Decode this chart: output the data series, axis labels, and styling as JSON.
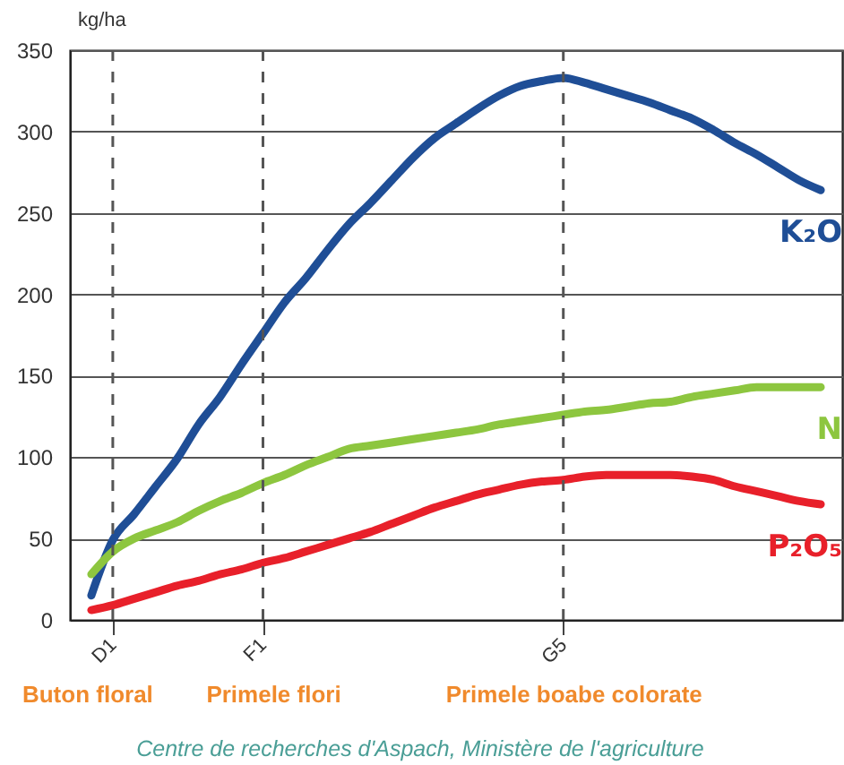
{
  "chart_data": {
    "type": "line",
    "ylabel": "kg/ha",
    "ylim": [
      0,
      350
    ],
    "categories": [
      null,
      "D1",
      null,
      null,
      null,
      null,
      null,
      null,
      "F1",
      null,
      null,
      null,
      null,
      null,
      null,
      null,
      null,
      null,
      null,
      null,
      null,
      null,
      "G5",
      null,
      null,
      null,
      null,
      null,
      null,
      null,
      null,
      null,
      null,
      null,
      null
    ],
    "yticks": [
      0,
      50,
      100,
      150,
      200,
      250,
      300,
      350
    ],
    "grid": "y",
    "ref_lines": [
      {
        "axis": "x",
        "value": "D1",
        "color": "#555555",
        "line_style": "dashed"
      },
      {
        "axis": "x",
        "value": "F1",
        "color": "#555555",
        "line_style": "dashed"
      },
      {
        "axis": "x",
        "value": "G5",
        "color": "#555555",
        "line_style": "dashed"
      }
    ],
    "series": [
      {
        "name": "K₂O",
        "color": "#1f4e96",
        "values": [
          15,
          49,
          65,
          82,
          99,
          120,
          137,
          157,
          176,
          195,
          210,
          227,
          243,
          256,
          270,
          284,
          296,
          305,
          314,
          322,
          328,
          331,
          333,
          330,
          326,
          322,
          318,
          313,
          308,
          301,
          293,
          286,
          278,
          270,
          264
        ]
      },
      {
        "name": "N",
        "color": "#8dc63f",
        "values": [
          28,
          42,
          50,
          55,
          60,
          67,
          73,
          78,
          84,
          89,
          95,
          100,
          105,
          107,
          109,
          111,
          113,
          115,
          117,
          120,
          122,
          124,
          126,
          128,
          129,
          131,
          133,
          134,
          137,
          139,
          141,
          143,
          143,
          143,
          143
        ]
      },
      {
        "name": "P₂O₅",
        "color": "#e8202a",
        "values": [
          6,
          9,
          13,
          17,
          21,
          24,
          28,
          31,
          35,
          38,
          42,
          46,
          50,
          54,
          59,
          64,
          69,
          73,
          77,
          80,
          83,
          85,
          86,
          88,
          89,
          89,
          89,
          89,
          88,
          86,
          82,
          79,
          76,
          73,
          71
        ]
      }
    ],
    "annotations": [
      "Buton floral",
      "Primele flori",
      "Primele boabe colorate",
      "Centre de recherches d'Aspach, Ministère de l'agriculture"
    ]
  }
}
